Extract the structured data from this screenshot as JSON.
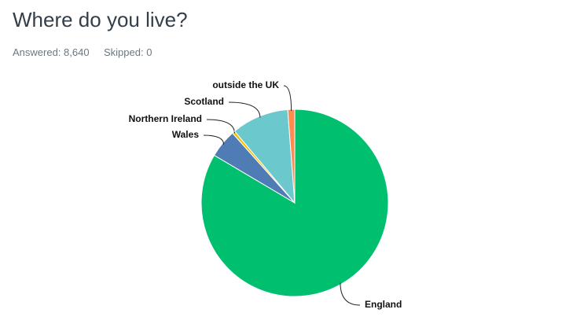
{
  "header": {
    "title": "Where do you live?",
    "answered": "Answered: 8,640",
    "skipped": "Skipped: 0"
  },
  "chart_data": {
    "type": "pie",
    "categories": [
      "England",
      "Wales",
      "Northern Ireland",
      "Scotland",
      "outside the UK"
    ],
    "values": [
      83.5,
      4.9,
      0.5,
      9.9,
      1.2
    ],
    "colors": [
      "#00bf6f",
      "#507cb6",
      "#f9be00",
      "#6bc8cd",
      "#ff8b4f"
    ]
  }
}
